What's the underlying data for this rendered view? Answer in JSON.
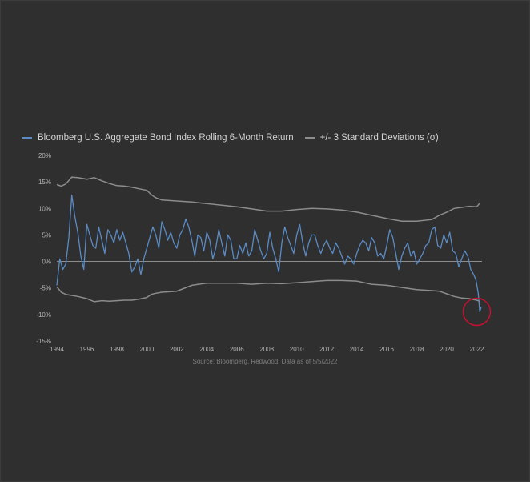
{
  "chart_data": {
    "type": "line",
    "title": "",
    "xlabel": "",
    "ylabel": "",
    "x_range": [
      1994,
      2022.35
    ],
    "ylim": [
      -15,
      20
    ],
    "y_ticks": [
      20,
      15,
      10,
      5,
      0,
      -5,
      -10,
      -15
    ],
    "y_tick_labels": [
      "20%",
      "15%",
      "10%",
      "5%",
      "0%",
      "-5%",
      "-10%",
      "-15%"
    ],
    "x_ticks": [
      1994,
      1996,
      1998,
      2000,
      2002,
      2004,
      2006,
      2008,
      2010,
      2012,
      2014,
      2016,
      2018,
      2020,
      2022
    ],
    "x_tick_labels": [
      "1994",
      "1996",
      "1998",
      "2000",
      "2002",
      "2004",
      "2006",
      "2008",
      "2010",
      "2012",
      "2014",
      "2016",
      "2018",
      "2020",
      "2022"
    ],
    "grid": false,
    "zero_line": true,
    "series": [
      {
        "name": "Bloomberg U.S. Aggregate Bond Index Rolling 6-Month Return",
        "color": "#5b8bc4",
        "x": [
          1994.0,
          1994.2,
          1994.4,
          1994.6,
          1994.8,
          1995.0,
          1995.2,
          1995.4,
          1995.6,
          1995.8,
          1996.0,
          1996.2,
          1996.4,
          1996.6,
          1996.8,
          1997.0,
          1997.2,
          1997.4,
          1997.6,
          1997.8,
          1998.0,
          1998.2,
          1998.4,
          1998.6,
          1998.8,
          1999.0,
          1999.2,
          1999.4,
          1999.6,
          1999.8,
          2000.0,
          2000.2,
          2000.4,
          2000.6,
          2000.8,
          2001.0,
          2001.2,
          2001.4,
          2001.6,
          2001.8,
          2002.0,
          2002.2,
          2002.4,
          2002.6,
          2002.8,
          2003.0,
          2003.2,
          2003.4,
          2003.6,
          2003.8,
          2004.0,
          2004.2,
          2004.4,
          2004.6,
          2004.8,
          2005.0,
          2005.2,
          2005.4,
          2005.6,
          2005.8,
          2006.0,
          2006.2,
          2006.4,
          2006.6,
          2006.8,
          2007.0,
          2007.2,
          2007.4,
          2007.6,
          2007.8,
          2008.0,
          2008.2,
          2008.4,
          2008.6,
          2008.8,
          2009.0,
          2009.2,
          2009.4,
          2009.6,
          2009.8,
          2010.0,
          2010.2,
          2010.4,
          2010.6,
          2010.8,
          2011.0,
          2011.2,
          2011.4,
          2011.6,
          2011.8,
          2012.0,
          2012.2,
          2012.4,
          2012.6,
          2012.8,
          2013.0,
          2013.2,
          2013.4,
          2013.6,
          2013.8,
          2014.0,
          2014.2,
          2014.4,
          2014.6,
          2014.8,
          2015.0,
          2015.2,
          2015.4,
          2015.6,
          2015.8,
          2016.0,
          2016.2,
          2016.4,
          2016.6,
          2016.8,
          2017.0,
          2017.2,
          2017.4,
          2017.6,
          2017.8,
          2018.0,
          2018.2,
          2018.4,
          2018.6,
          2018.8,
          2019.0,
          2019.2,
          2019.4,
          2019.6,
          2019.8,
          2020.0,
          2020.2,
          2020.4,
          2020.6,
          2020.8,
          2021.0,
          2021.2,
          2021.4,
          2021.6,
          2021.8,
          2021.95,
          2022.1,
          2022.2,
          2022.3
        ],
        "values": [
          -4.5,
          0.5,
          -1.5,
          -0.5,
          4.5,
          12.5,
          8.5,
          5.5,
          1.0,
          -1.5,
          7.0,
          5.0,
          3.0,
          2.5,
          6.5,
          4.0,
          1.5,
          6.0,
          5.0,
          3.5,
          6.0,
          4.0,
          5.5,
          3.5,
          1.5,
          -2.0,
          -1.0,
          0.5,
          -2.5,
          0.5,
          2.5,
          4.5,
          6.5,
          5.0,
          2.5,
          7.5,
          6.0,
          4.0,
          5.5,
          3.5,
          2.5,
          5.0,
          6.0,
          8.0,
          6.5,
          4.0,
          1.0,
          5.0,
          4.5,
          2.0,
          5.5,
          4.0,
          0.5,
          2.5,
          6.0,
          3.5,
          1.0,
          5.0,
          4.0,
          0.5,
          0.5,
          3.0,
          1.5,
          3.5,
          1.0,
          2.0,
          6.0,
          4.0,
          2.0,
          0.5,
          1.5,
          5.5,
          2.5,
          0.5,
          -2.0,
          3.5,
          6.5,
          4.5,
          3.0,
          1.5,
          5.0,
          7.0,
          3.5,
          1.0,
          3.5,
          5.0,
          5.0,
          3.0,
          1.5,
          3.0,
          4.0,
          2.5,
          1.5,
          3.5,
          2.5,
          1.0,
          -0.5,
          1.0,
          0.5,
          -0.5,
          1.5,
          3.0,
          4.0,
          3.5,
          2.0,
          4.5,
          3.5,
          1.0,
          1.5,
          0.5,
          3.0,
          6.0,
          4.5,
          1.5,
          -1.5,
          1.0,
          2.5,
          3.5,
          1.0,
          2.0,
          -0.5,
          0.5,
          1.5,
          3.0,
          3.5,
          6.0,
          6.5,
          3.0,
          2.5,
          5.0,
          3.5,
          5.5,
          2.0,
          1.5,
          -1.0,
          0.5,
          2.0,
          1.0,
          -1.5,
          -2.5,
          -3.5,
          -6.0,
          -9.5,
          -8.5
        ]
      },
      {
        "name": "+/- 3 Standard Deviations (σ)",
        "color": "#8c8c8c",
        "upper": {
          "x": [
            1994.0,
            1994.3,
            1994.6,
            1995.0,
            1995.4,
            1996.0,
            1996.5,
            1997.0,
            1997.5,
            1998.0,
            1998.5,
            1999.0,
            1999.5,
            2000.0,
            2000.3,
            2000.6,
            2001.0,
            2002.0,
            2003.0,
            2004.0,
            2005.0,
            2006.0,
            2007.0,
            2008.0,
            2009.0,
            2010.0,
            2011.0,
            2012.0,
            2013.0,
            2014.0,
            2015.0,
            2016.0,
            2017.0,
            2018.0,
            2019.0,
            2019.5,
            2020.0,
            2020.5,
            2021.0,
            2021.5,
            2022.0,
            2022.2
          ],
          "values": [
            14.5,
            14.2,
            14.6,
            15.9,
            15.8,
            15.5,
            15.8,
            15.2,
            14.7,
            14.3,
            14.2,
            14.0,
            13.7,
            13.4,
            12.6,
            12.0,
            11.6,
            11.4,
            11.2,
            10.9,
            10.6,
            10.3,
            9.9,
            9.5,
            9.5,
            9.8,
            10.0,
            9.9,
            9.7,
            9.3,
            8.7,
            8.1,
            7.6,
            7.6,
            7.9,
            8.7,
            9.3,
            10.0,
            10.2,
            10.4,
            10.3,
            11.0
          ]
        },
        "lower": {
          "x": [
            1994.0,
            1994.3,
            1994.6,
            1995.0,
            1995.4,
            1996.0,
            1996.5,
            1997.0,
            1997.5,
            1998.0,
            1998.5,
            1999.0,
            1999.5,
            2000.0,
            2000.3,
            2000.6,
            2001.0,
            2002.0,
            2003.0,
            2004.0,
            2005.0,
            2006.0,
            2007.0,
            2008.0,
            2009.0,
            2010.0,
            2011.0,
            2012.0,
            2013.0,
            2014.0,
            2015.0,
            2016.0,
            2017.0,
            2018.0,
            2019.0,
            2019.5,
            2020.0,
            2020.5,
            2021.0,
            2021.5,
            2022.0,
            2022.2
          ],
          "values": [
            -4.8,
            -5.8,
            -6.2,
            -6.4,
            -6.6,
            -7.0,
            -7.6,
            -7.4,
            -7.5,
            -7.4,
            -7.3,
            -7.3,
            -7.1,
            -6.8,
            -6.2,
            -6.0,
            -5.8,
            -5.6,
            -4.5,
            -4.1,
            -4.1,
            -4.1,
            -4.3,
            -4.1,
            -4.2,
            -4.0,
            -3.8,
            -3.6,
            -3.6,
            -3.7,
            -4.3,
            -4.5,
            -4.9,
            -5.3,
            -5.5,
            -5.6,
            -6.1,
            -6.6,
            -6.9,
            -7.0,
            -7.3,
            -7.5
          ]
        }
      }
    ],
    "annotations": [
      {
        "type": "circle",
        "color": "#c8102e",
        "x": 2022.0,
        "y": -9.5
      }
    ],
    "source_note": "Source: Bloomberg, Redwood. Data as of 5/5/2022"
  }
}
